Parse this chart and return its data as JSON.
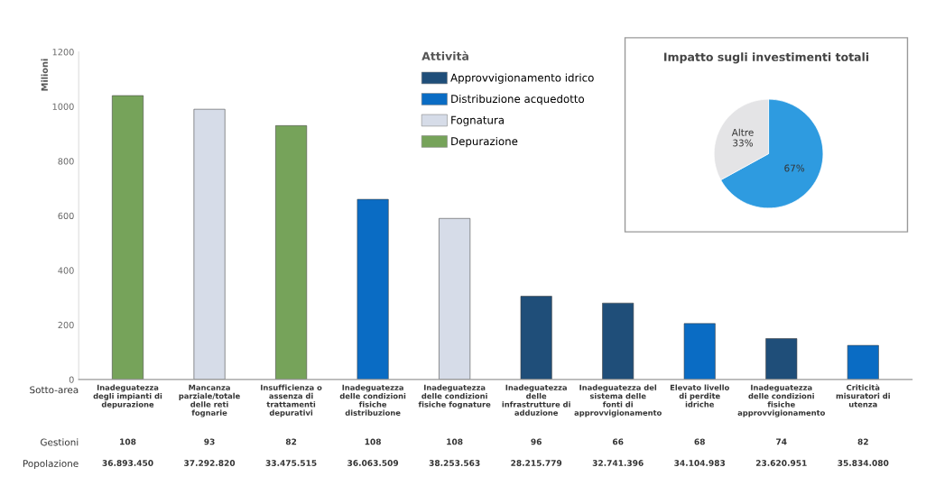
{
  "chart_data": [
    {
      "type": "bar",
      "stacked": true,
      "ylabel": "Milioni",
      "legend_title": "Attività",
      "legend": "top",
      "grid": false,
      "categories": [
        "Inadeguatezza degli impianti di depurazione",
        "Mancanza parziale/totale delle reti fognarie",
        "Insufficienza o assenza di trattamenti depurativi",
        "Inadeguatezza delle condizioni fisiche distribuzione",
        "Inadeguatezza delle condizioni fisiche fognature",
        "Inadeguatezza delle infrastrutture di adduzione",
        "Inadeguatezza del sistema delle fonti di approvvigionamento",
        "Elevato livello di perdite idriche",
        "Inadeguatezza delle condizioni fisiche approvvigionamento",
        "Criticità misuratori di utenza"
      ],
      "series": [
        {
          "name": "Approvvigionamento idrico",
          "color": "#1f4e79",
          "values": [
            null,
            null,
            null,
            null,
            null,
            305,
            280,
            null,
            150,
            null
          ]
        },
        {
          "name": "Distribuzione acquedotto",
          "color": "#0a6cc4",
          "values": [
            null,
            null,
            null,
            660,
            null,
            null,
            null,
            205,
            null,
            125
          ]
        },
        {
          "name": "Fognatura",
          "color": "#d6dce8",
          "values": [
            null,
            990,
            null,
            null,
            590,
            null,
            null,
            null,
            null,
            null
          ]
        },
        {
          "name": "Depurazione",
          "color": "#76a35a",
          "values": [
            1040,
            null,
            930,
            null,
            null,
            null,
            null,
            null,
            null,
            null
          ]
        }
      ],
      "ylim": [
        0,
        1200
      ],
      "yticks": [
        0,
        200,
        400,
        600,
        800,
        1000,
        1200
      ],
      "annotations": [
        "Sotto-area",
        "Gestioni",
        "Popolazione",
        "108",
        "93",
        "82",
        "108",
        "108",
        "96",
        "66",
        "68",
        "74",
        "82",
        "36.893.450",
        "37.292.820",
        "33.475.515",
        "36.063.509",
        "38.253.563",
        "28.215.779",
        "32.741.396",
        "34.104.983",
        "23.620.951",
        "35.834.080"
      ]
    },
    {
      "type": "pie",
      "title": "Impatto sugli investimenti totali",
      "categories": [
        null,
        "Altre"
      ],
      "values": [
        67,
        33
      ],
      "colors": [
        "#2e9be0",
        "#e4e4e6"
      ],
      "value_labels": [
        "67%",
        "33%"
      ]
    }
  ]
}
